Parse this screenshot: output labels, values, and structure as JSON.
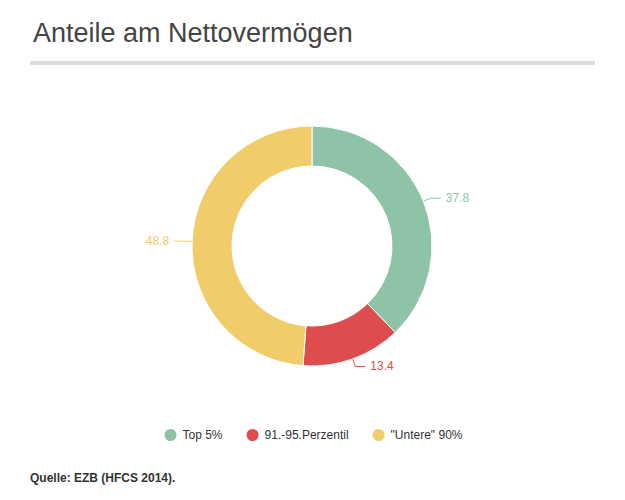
{
  "chart_data": {
    "type": "pie",
    "title": "Anteile am Nettovermögen",
    "categories": [
      "Top 5%",
      "91.-95.Perzentil",
      "\"Untere\" 90%"
    ],
    "values": [
      37.8,
      13.4,
      48.8
    ],
    "colors": [
      "#8fc3a8",
      "#de4d4e",
      "#f0cd6a"
    ],
    "data_labels": true,
    "legend": "bottom",
    "source": "Quelle: EZB (HFCS 2014)."
  }
}
